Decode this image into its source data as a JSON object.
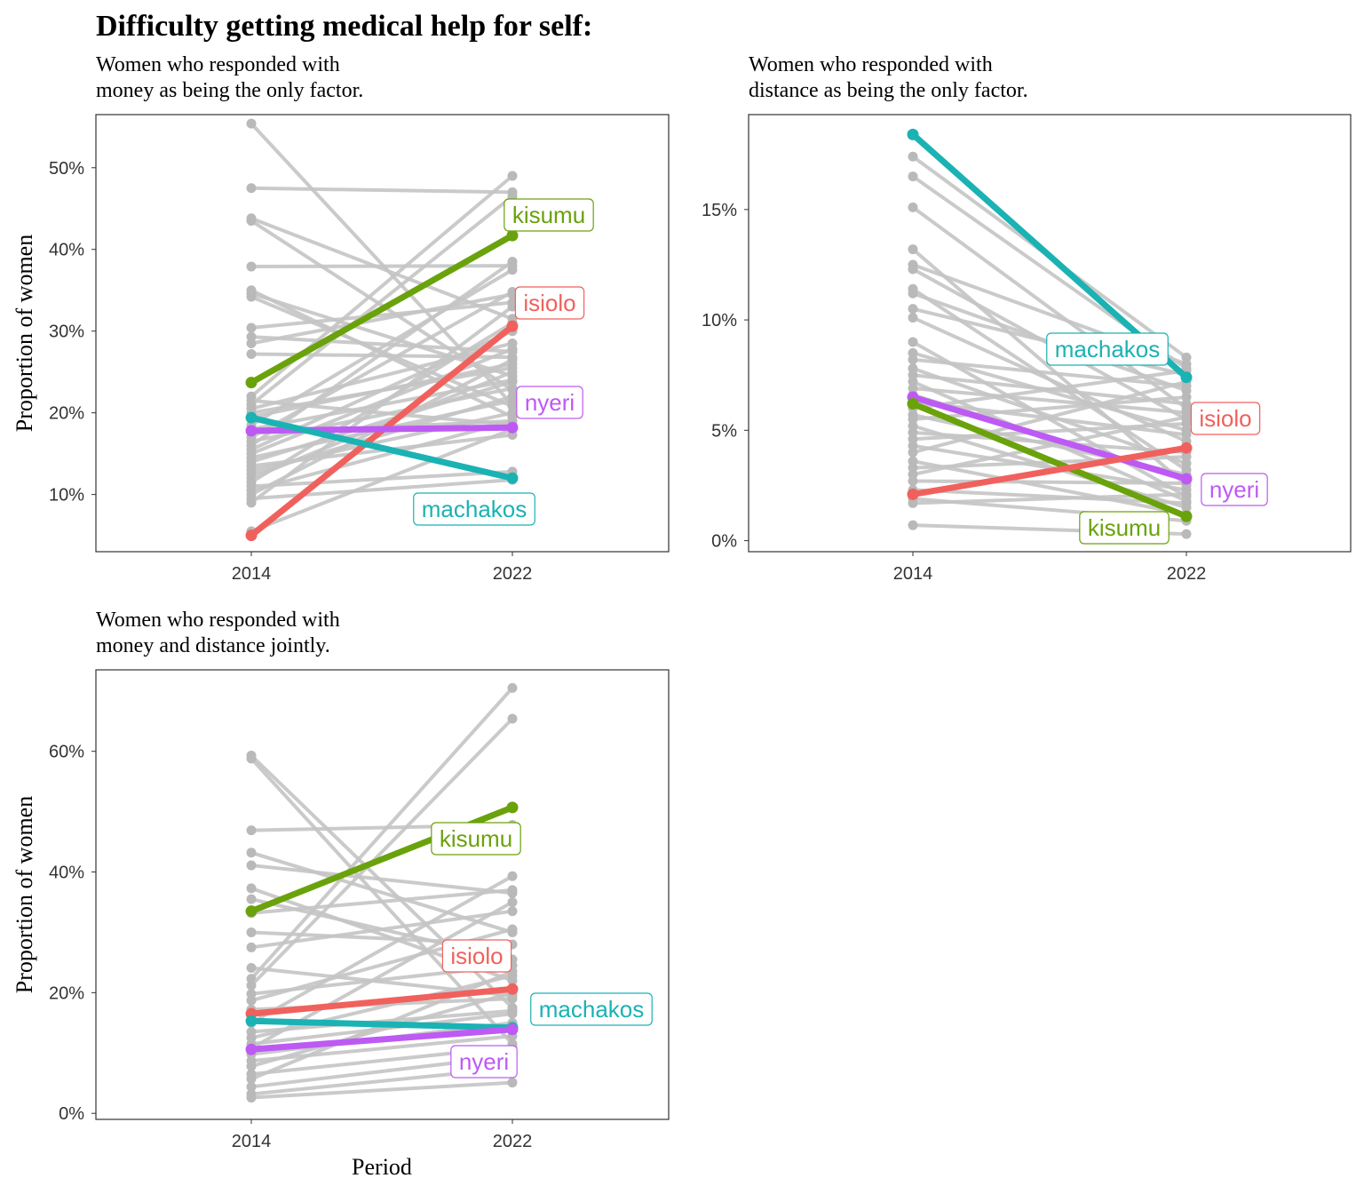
{
  "title": "Difficulty getting medical help for self:",
  "xlabel": "Period",
  "ylabel": "Proportion of women",
  "colors": {
    "background_lines": "#c4c4c4",
    "background_points": "#b9b9b9",
    "kisumu": "#6aa20b",
    "isiolo": "#f0615d",
    "machakos": "#1bb2b4",
    "nyeri": "#bd5af4"
  },
  "chart_data": [
    {
      "type": "line",
      "subtitle_lines": [
        "Women who responded with",
        "money as being the only factor."
      ],
      "x": [
        "2014",
        "2022"
      ],
      "xlabel": "",
      "ylabel": "Proportion of women",
      "yticks": [
        "10%",
        "20%",
        "30%",
        "40%",
        "50%"
      ],
      "ylim": [
        3,
        56.5
      ],
      "highlight": [
        {
          "name": "kisumu",
          "values": [
            23.7,
            41.7
          ]
        },
        {
          "name": "isiolo",
          "values": [
            5.0,
            30.6
          ]
        },
        {
          "name": "nyeri",
          "values": [
            17.8,
            18.2
          ]
        },
        {
          "name": "machakos",
          "values": [
            19.4,
            12.0
          ]
        }
      ],
      "background": [
        [
          55.4,
          21.0
        ],
        [
          47.5,
          47.0
        ],
        [
          43.8,
          31.5
        ],
        [
          43.5,
          22.8
        ],
        [
          37.9,
          38.0
        ],
        [
          35.0,
          19.5
        ],
        [
          34.6,
          24.5
        ],
        [
          34.2,
          20.8
        ],
        [
          30.4,
          33.5
        ],
        [
          29.3,
          27.5
        ],
        [
          28.5,
          34.5
        ],
        [
          27.2,
          26.8
        ],
        [
          22.0,
          49.0
        ],
        [
          21.5,
          18.5
        ],
        [
          21.0,
          46.5
        ],
        [
          20.5,
          28.5
        ],
        [
          20.0,
          25.5
        ],
        [
          19.5,
          26.0
        ],
        [
          18.5,
          37.5
        ],
        [
          18.0,
          24.0
        ],
        [
          17.5,
          19.0
        ],
        [
          17.0,
          34.8
        ],
        [
          16.5,
          23.0
        ],
        [
          16.0,
          38.5
        ],
        [
          15.5,
          30.0
        ],
        [
          15.0,
          27.8
        ],
        [
          14.5,
          21.5
        ],
        [
          14.0,
          23.8
        ],
        [
          13.5,
          17.3
        ],
        [
          13.0,
          20.0
        ],
        [
          12.5,
          22.0
        ],
        [
          12.0,
          25.0
        ],
        [
          11.5,
          31.0
        ],
        [
          11.0,
          12.8
        ],
        [
          10.5,
          19.0
        ],
        [
          10.0,
          26.5
        ],
        [
          9.5,
          11.8
        ],
        [
          9.0,
          33.0
        ],
        [
          5.5,
          18.0
        ]
      ],
      "labels": {
        "kisumu": "kisumu",
        "isiolo": "isiolo",
        "nyeri": "nyeri",
        "machakos": "machakos"
      }
    },
    {
      "type": "line",
      "subtitle_lines": [
        "Women who responded with",
        "distance as being the only factor."
      ],
      "x": [
        "2014",
        "2022"
      ],
      "xlabel": "",
      "ylabel": "",
      "yticks": [
        "0%",
        "5%",
        "10%",
        "15%"
      ],
      "ylim": [
        -0.5,
        19.3
      ],
      "highlight": [
        {
          "name": "machakos",
          "values": [
            18.4,
            7.4
          ]
        },
        {
          "name": "nyeri",
          "values": [
            6.5,
            2.8
          ]
        },
        {
          "name": "kisumu",
          "values": [
            6.2,
            1.1
          ]
        },
        {
          "name": "isiolo",
          "values": [
            2.1,
            4.2
          ]
        }
      ],
      "background": [
        [
          17.4,
          8.3
        ],
        [
          16.5,
          7.8
        ],
        [
          15.1,
          6.0
        ],
        [
          13.2,
          2.5
        ],
        [
          12.5,
          8.0
        ],
        [
          12.3,
          5.5
        ],
        [
          11.4,
          3.2
        ],
        [
          11.2,
          6.8
        ],
        [
          10.5,
          7.5
        ],
        [
          10.1,
          4.5
        ],
        [
          9.0,
          2.0
        ],
        [
          8.5,
          5.0
        ],
        [
          8.2,
          7.0
        ],
        [
          7.8,
          3.5
        ],
        [
          7.5,
          6.2
        ],
        [
          7.2,
          1.8
        ],
        [
          6.9,
          5.8
        ],
        [
          6.6,
          2.8
        ],
        [
          6.3,
          4.8
        ],
        [
          6.0,
          7.7
        ],
        [
          5.7,
          3.0
        ],
        [
          5.5,
          6.5
        ],
        [
          5.2,
          1.5
        ],
        [
          4.9,
          4.0
        ],
        [
          4.6,
          5.3
        ],
        [
          4.3,
          2.3
        ],
        [
          4.0,
          7.2
        ],
        [
          3.6,
          1.2
        ],
        [
          3.3,
          3.8
        ],
        [
          3.0,
          5.6
        ],
        [
          2.7,
          2.6
        ],
        [
          2.3,
          1.7
        ],
        [
          1.9,
          0.9
        ],
        [
          1.7,
          2.1
        ],
        [
          0.7,
          0.3
        ]
      ],
      "labels": {
        "kisumu": "kisumu",
        "isiolo": "isiolo",
        "nyeri": "nyeri",
        "machakos": "machakos"
      }
    },
    {
      "type": "line",
      "subtitle_lines": [
        "Women who responded with",
        "money and distance jointly."
      ],
      "x": [
        "2014",
        "2022"
      ],
      "xlabel": "Period",
      "ylabel": "Proportion of women",
      "yticks": [
        "0%",
        "20%",
        "40%",
        "60%"
      ],
      "ylim": [
        -1,
        73.5
      ],
      "highlight": [
        {
          "name": "kisumu",
          "values": [
            33.5,
            50.7
          ]
        },
        {
          "name": "isiolo",
          "values": [
            16.5,
            20.6
          ]
        },
        {
          "name": "machakos",
          "values": [
            15.3,
            14.2
          ]
        },
        {
          "name": "nyeri",
          "values": [
            10.6,
            13.9
          ]
        }
      ],
      "background": [
        [
          59.3,
          17.5
        ],
        [
          58.8,
          11.5
        ],
        [
          46.9,
          47.8
        ],
        [
          43.2,
          30.0
        ],
        [
          41.1,
          36.5
        ],
        [
          37.3,
          22.0
        ],
        [
          35.5,
          25.5
        ],
        [
          33.2,
          37.0
        ],
        [
          30.0,
          28.0
        ],
        [
          27.5,
          33.5
        ],
        [
          24.1,
          19.5
        ],
        [
          22.3,
          70.5
        ],
        [
          21.2,
          65.4
        ],
        [
          19.8,
          24.5
        ],
        [
          18.7,
          30.5
        ],
        [
          17.2,
          19.0
        ],
        [
          15.0,
          39.3
        ],
        [
          13.5,
          17.0
        ],
        [
          12.5,
          22.8
        ],
        [
          11.5,
          16.5
        ],
        [
          10.8,
          35.0
        ],
        [
          9.8,
          15.0
        ],
        [
          8.7,
          12.8
        ],
        [
          7.8,
          20.0
        ],
        [
          6.5,
          11.0
        ],
        [
          5.7,
          23.5
        ],
        [
          4.4,
          9.5
        ],
        [
          3.2,
          7.5
        ],
        [
          2.6,
          5.1
        ]
      ],
      "labels": {
        "kisumu": "kisumu",
        "isiolo": "isiolo",
        "nyeri": "nyeri",
        "machakos": "machakos"
      }
    }
  ]
}
